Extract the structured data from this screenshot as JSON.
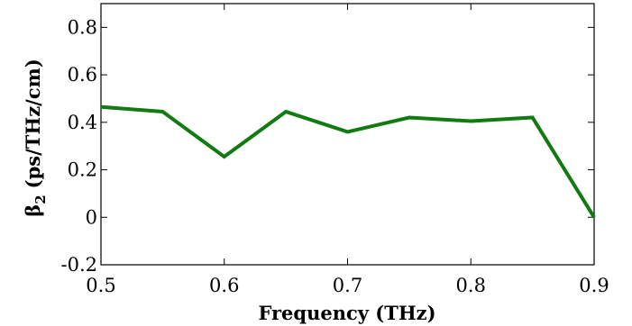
{
  "chart_data": {
    "type": "line",
    "xlabel": "Frequency (THz)",
    "ylabel": {
      "symbol": "β",
      "subscript": "2",
      "units": "(ps/THz/cm)"
    },
    "xlim": [
      0.5,
      0.9
    ],
    "ylim": [
      -0.2,
      0.9
    ],
    "xticks": [
      0.5,
      0.6,
      0.7,
      0.8,
      0.9
    ],
    "xtick_labels": [
      "0.5",
      "0.6",
      "0.7",
      "0.8",
      "0.9"
    ],
    "yticks": [
      -0.2,
      0,
      0.2,
      0.4,
      0.6,
      0.8
    ],
    "ytick_labels": [
      "-0.2",
      "0",
      "0.2",
      "0.4",
      "0.6",
      "0.8"
    ],
    "grid": false,
    "series": [
      {
        "color": "#117a11",
        "x": [
          0.5,
          0.55,
          0.6,
          0.65,
          0.7,
          0.75,
          0.8,
          0.85,
          0.9
        ],
        "y": [
          0.465,
          0.445,
          0.255,
          0.445,
          0.36,
          0.42,
          0.405,
          0.42,
          0.0
        ]
      }
    ]
  }
}
